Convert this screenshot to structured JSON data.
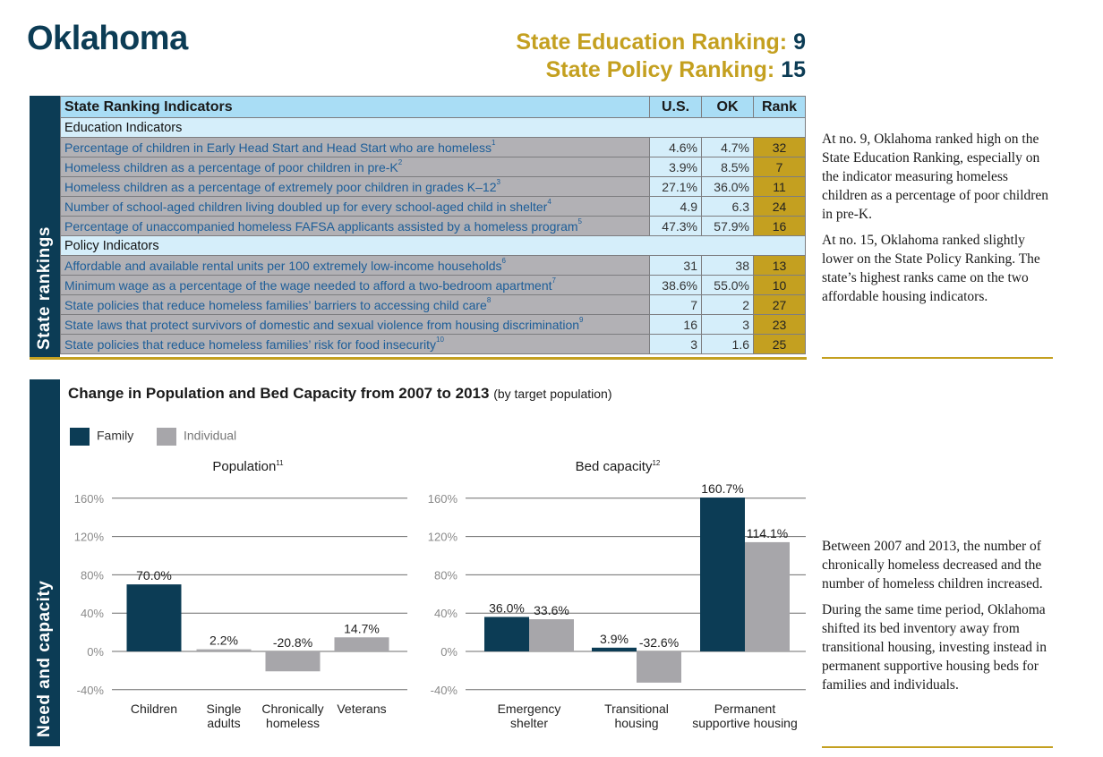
{
  "header": {
    "state": "Oklahoma",
    "education_label": "State Education Ranking:",
    "education_rank": "9",
    "policy_label": "State Policy Ranking:",
    "policy_rank": "15"
  },
  "sidebars": {
    "rankings": "State rankings",
    "need": "Need and capacity"
  },
  "colors": {
    "navy": "#0c3c55",
    "gold": "#c4a020",
    "gray": "#a7a6aa",
    "light_blue": "#d5eefa"
  },
  "table": {
    "headers": [
      "State Ranking Indicators",
      "U.S.",
      "OK",
      "Rank"
    ],
    "sections": [
      {
        "title": "Education Indicators",
        "rows": [
          {
            "text": "Percentage of children in Early Head Start and Head Start who are homeless",
            "note": "1",
            "us": "4.6%",
            "ok": "4.7%",
            "rank": "32"
          },
          {
            "text": "Homeless children as a percentage of poor children in pre-K",
            "note": "2",
            "us": "3.9%",
            "ok": "8.5%",
            "rank": "7"
          },
          {
            "text": "Homeless children as a percentage of extremely poor children in grades K–12",
            "note": "3",
            "us": "27.1%",
            "ok": "36.0%",
            "rank": "11"
          },
          {
            "text": "Number of school-aged children living doubled up for every school-aged child in shelter",
            "note": "4",
            "us": "4.9",
            "ok": "6.3",
            "rank": "24"
          },
          {
            "text": "Percentage of unaccompanied homeless FAFSA applicants assisted by a homeless program",
            "note": "5",
            "us": "47.3%",
            "ok": "57.9%",
            "rank": "16"
          }
        ]
      },
      {
        "title": "Policy Indicators",
        "rows": [
          {
            "text": "Affordable and available rental units per 100 extremely low-income households",
            "note": "6",
            "us": "31",
            "ok": "38",
            "rank": "13"
          },
          {
            "text": "Minimum wage as a percentage of the wage needed to afford a two-bedroom apartment",
            "note": "7",
            "us": "38.6%",
            "ok": "55.0%",
            "rank": "10"
          },
          {
            "text": "State policies that reduce homeless families’ barriers to accessing child care",
            "note": "8",
            "us": "7",
            "ok": "2",
            "rank": "27"
          },
          {
            "text": "State laws that protect survivors of domestic and sexual violence from housing discrimination",
            "note": "9",
            "us": "16",
            "ok": "3",
            "rank": "23"
          },
          {
            "text": "State policies that reduce homeless families’ risk for food insecurity",
            "note": "10",
            "us": "3",
            "ok": "1.6",
            "rank": "25"
          }
        ]
      }
    ]
  },
  "notes1": [
    "At no. 9, Oklahoma ranked high on the State Education Ranking, especially on the indicator measuring homeless children as a percentage of poor children in pre-K.",
    "At no. 15, Oklahoma ranked slightly lower on the State Policy Ranking. The state’s highest ranks came on the two affordable housing indicators."
  ],
  "notes2": [
    "Between 2007 and 2013, the number of chronically homeless decreased and the number of homeless children increased.",
    "During the same time period, Oklahoma shifted its bed inventory away from transitional housing, investing instead in permanent supportive housing beds for families and individuals."
  ],
  "chart_section": {
    "title": "Change in Population and Bed Capacity from 2007 to 2013",
    "subtitle": "(by target population)"
  },
  "chart_data": [
    {
      "type": "bar",
      "title": "Population",
      "title_note": "11",
      "legend": "top-left",
      "grid": true,
      "ylim": [
        -40,
        160
      ],
      "yticks": [
        "160%",
        "120%",
        "80%",
        "40%",
        "0%",
        "-40%"
      ],
      "ytick_values": [
        160,
        120,
        80,
        40,
        0,
        -40
      ],
      "categories": [
        [
          "Children"
        ],
        [
          "Single",
          "adults"
        ],
        [
          "Chronically",
          "homeless"
        ],
        [
          "Veterans"
        ]
      ],
      "series": [
        {
          "name": "Family",
          "values": [
            70.0,
            null,
            null,
            null
          ],
          "labels": [
            "70.0%",
            null,
            null,
            null
          ]
        },
        {
          "name": "Individual",
          "values": [
            null,
            2.2,
            -20.8,
            14.7
          ],
          "labels": [
            null,
            "2.2%",
            "-20.8%",
            "14.7%"
          ]
        }
      ]
    },
    {
      "type": "bar",
      "title": "Bed capacity",
      "title_note": "12",
      "grid": true,
      "ylim": [
        -40,
        160
      ],
      "yticks": [
        "160%",
        "120%",
        "80%",
        "40%",
        "0%",
        "-40%"
      ],
      "ytick_values": [
        160,
        120,
        80,
        40,
        0,
        -40
      ],
      "categories": [
        [
          "Emergency",
          "shelter"
        ],
        [
          "Transitional",
          "housing"
        ],
        [
          "Permanent",
          "supportive housing"
        ]
      ],
      "series": [
        {
          "name": "Family",
          "values": [
            36.0,
            3.9,
            160.7
          ],
          "labels": [
            "36.0%",
            "3.9%",
            "160.7%"
          ]
        },
        {
          "name": "Individual",
          "values": [
            33.6,
            -32.6,
            114.1
          ],
          "labels": [
            "33.6%",
            "-32.6%",
            "114.1%"
          ]
        }
      ]
    }
  ]
}
